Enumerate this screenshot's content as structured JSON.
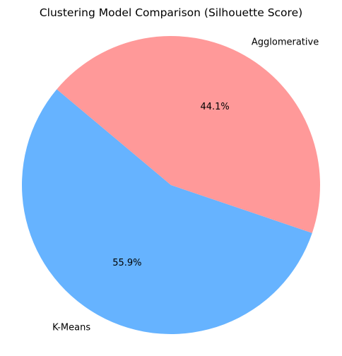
{
  "chart_data": {
    "type": "pie",
    "title": "Clustering Model Comparison (Silhouette Score)",
    "labels": [
      "K-Means",
      "Agglomerative"
    ],
    "values": [
      55.9,
      44.1
    ],
    "percent_labels": [
      "55.9%",
      "44.1%"
    ],
    "colors": [
      "#66b3ff",
      "#ff9999"
    ],
    "start_angle_deg": 140,
    "legend": "none"
  }
}
